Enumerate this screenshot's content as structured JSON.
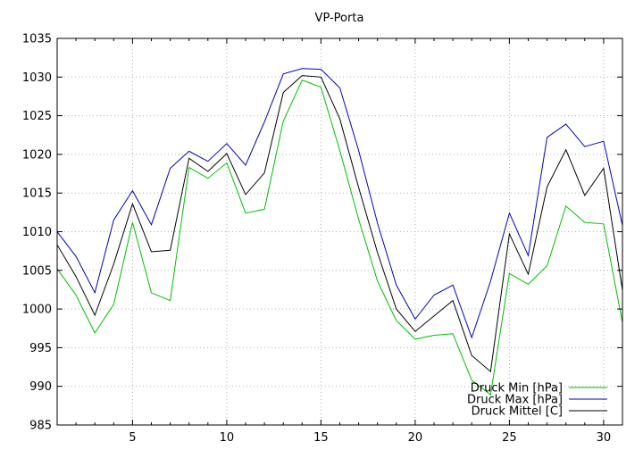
{
  "chart_data": {
    "type": "line",
    "title": "VP-Porta",
    "xlabel": "",
    "ylabel": "",
    "xlim": [
      1,
      31
    ],
    "ylim": [
      985,
      1035
    ],
    "xticks": [
      5,
      10,
      15,
      20,
      25,
      30
    ],
    "yticks": [
      985,
      990,
      995,
      1000,
      1005,
      1010,
      1015,
      1020,
      1025,
      1030,
      1035
    ],
    "grid": true,
    "legend_position": "bottom-right",
    "x": [
      1,
      2,
      3,
      4,
      5,
      6,
      7,
      8,
      9,
      10,
      11,
      12,
      13,
      14,
      15,
      16,
      17,
      18,
      19,
      20,
      21,
      22,
      23,
      24,
      25,
      26,
      27,
      28,
      29,
      30,
      31
    ],
    "series": [
      {
        "name": "Druck Min [hPa]",
        "color": "#00c000",
        "values": [
          1005.2,
          1001.8,
          996.9,
          1000.6,
          1011.2,
          1002.1,
          1001.1,
          1018.3,
          1016.9,
          1018.9,
          1012.4,
          1012.9,
          1024.3,
          1029.6,
          1028.7,
          1020.5,
          1011.6,
          1003.6,
          998.5,
          996.1,
          996.6,
          996.8,
          990.8,
          988.9,
          1004.6,
          1003.2,
          1005.6,
          1013.3,
          1011.2,
          1011.0,
          998.2
        ]
      },
      {
        "name": "Druck Max [hPa]",
        "color": "#0000c0",
        "values": [
          1010.0,
          1006.8,
          1002.1,
          1011.5,
          1015.3,
          1010.9,
          1018.2,
          1020.4,
          1019.1,
          1021.4,
          1018.6,
          1024.2,
          1030.4,
          1031.1,
          1031.0,
          1028.6,
          1020.5,
          1011.1,
          1003.1,
          998.7,
          1001.8,
          1003.1,
          996.3,
          1003.6,
          1012.4,
          1006.9,
          1022.2,
          1023.9,
          1021.0,
          1021.7,
          1010.8
        ]
      },
      {
        "name": "Druck Mittel [C]",
        "color": "#000000",
        "values": [
          1008.3,
          1004.2,
          999.2,
          1005.8,
          1013.6,
          1007.4,
          1007.6,
          1019.5,
          1017.8,
          1020.1,
          1014.8,
          1017.6,
          1028.0,
          1030.2,
          1030.0,
          1024.6,
          1015.7,
          1007.3,
          1000.0,
          997.1,
          999.1,
          1001.1,
          994.0,
          991.9,
          1009.7,
          1004.5,
          1015.8,
          1020.6,
          1014.7,
          1018.2,
          1002.4
        ]
      }
    ]
  }
}
